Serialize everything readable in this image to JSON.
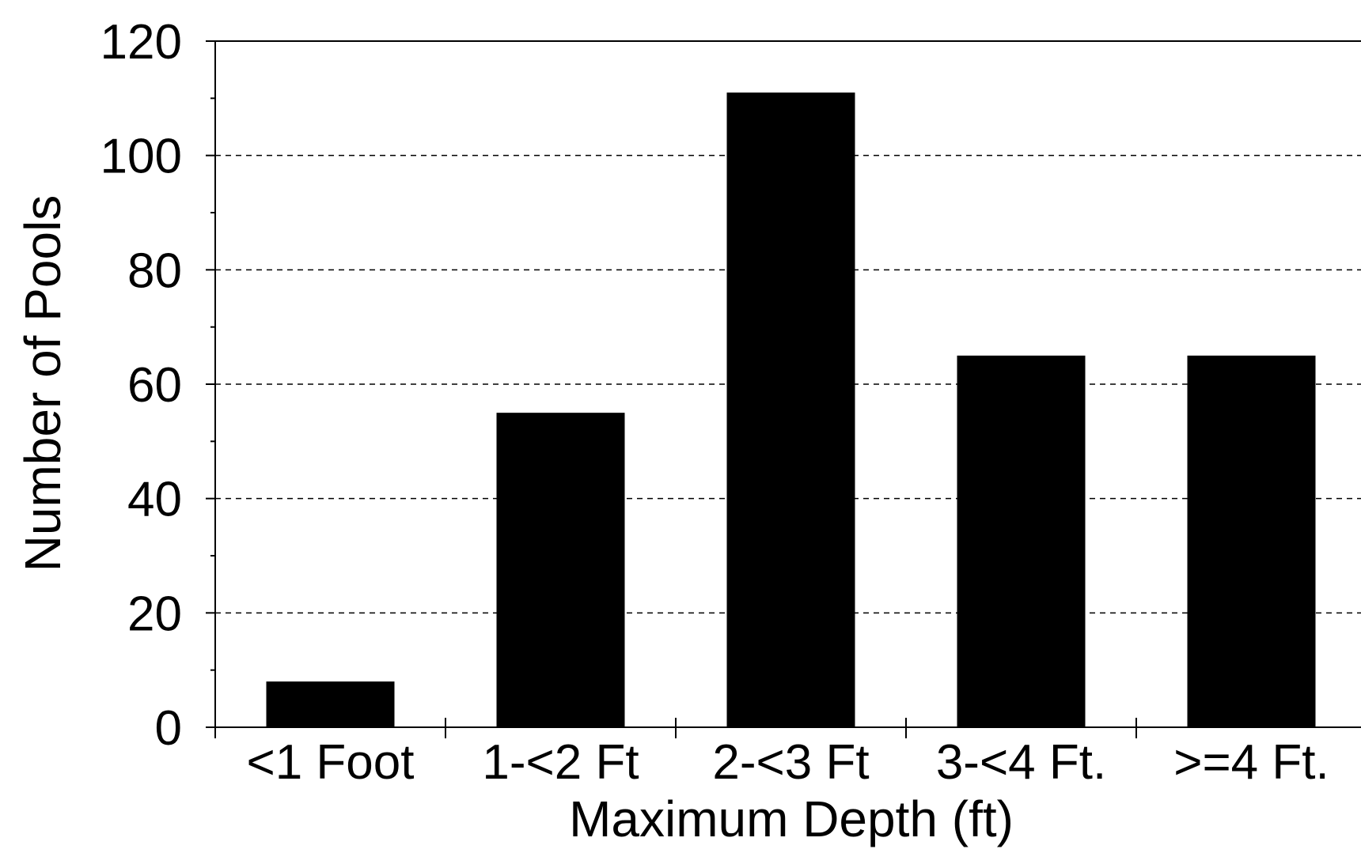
{
  "chart_data": {
    "type": "bar",
    "title": "",
    "xlabel": "Maximum Depth (ft)",
    "ylabel": "Number of Pools",
    "categories": [
      "<1 Foot",
      "1-<2 Ft",
      "2-<3 Ft",
      "3-<4 Ft.",
      ">=4 Ft."
    ],
    "values": [
      8,
      55,
      111,
      65,
      65
    ],
    "ylim": [
      0,
      120
    ],
    "yticks": [
      "0",
      "20",
      "40",
      "60",
      "80",
      "100",
      "120"
    ],
    "ytick_values": [
      0,
      20,
      40,
      60,
      80,
      100,
      120
    ],
    "grid": "dashed horizontal",
    "legend": "none",
    "bar_color": "#000000"
  }
}
